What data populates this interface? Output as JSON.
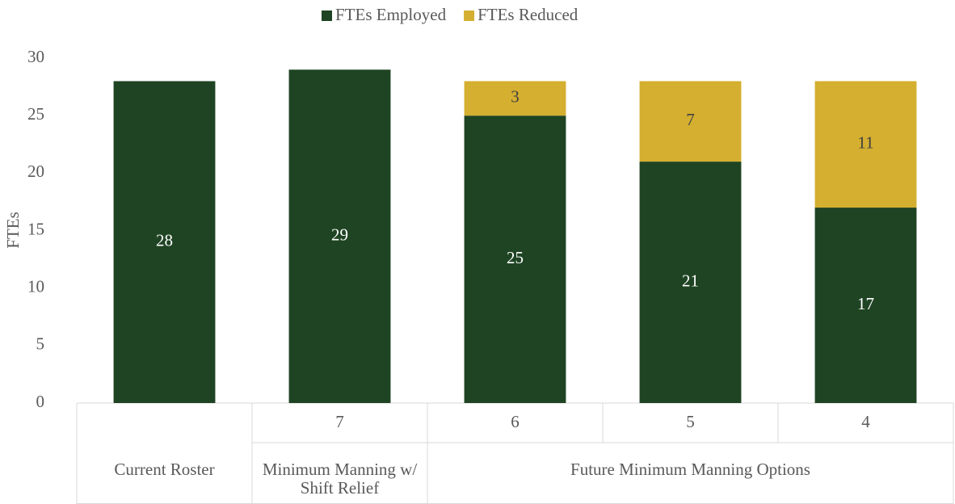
{
  "chart_data": {
    "type": "stacked_bar",
    "categories": [
      null,
      "7",
      "6",
      "5",
      "4"
    ],
    "groups": [
      {
        "label": "Current Roster",
        "span": 1
      },
      {
        "label": "Minimum Manning w/ Shift Relief",
        "span": 1
      },
      {
        "label": "Future Minimum Manning Options",
        "span": 3
      }
    ],
    "series": [
      {
        "name": "FTEs Employed",
        "color": "#1f4423",
        "label_color": "#ffffff",
        "values": [
          28,
          29,
          25,
          21,
          17
        ]
      },
      {
        "name": "FTEs Reduced",
        "color": "#d4af30",
        "label_color": "#404040",
        "values": [
          null,
          null,
          3,
          7,
          11
        ]
      }
    ],
    "y_label": "FTEs",
    "ylim": [
      0,
      30
    ],
    "yticks": [
      0,
      5,
      10,
      15,
      20,
      25,
      30
    ],
    "legend": "top",
    "grid": false
  }
}
